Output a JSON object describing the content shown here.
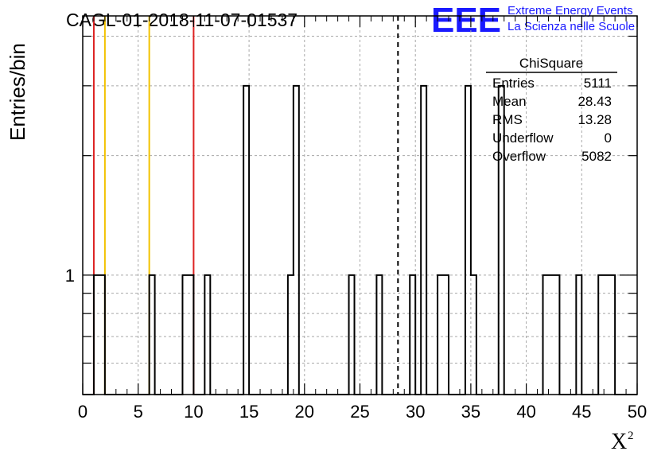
{
  "header": {
    "run_title": "CAGL-01-2018-11-07-01537",
    "logo_text": "EEE",
    "project_line1": "Extreme Energy Events",
    "project_line2": "La Scienza nelle Scuole",
    "brand_color": "#1a1aff"
  },
  "stats": {
    "title": "ChiSquare",
    "rows": [
      {
        "label": "Entries",
        "value": "5111"
      },
      {
        "label": "Mean",
        "value": "28.43"
      },
      {
        "label": "RMS",
        "value": "13.28"
      },
      {
        "label": "Underflow",
        "value": "0"
      },
      {
        "label": "Overflow",
        "value": "5082"
      }
    ]
  },
  "chart_data": {
    "type": "bar",
    "style": "step-histogram",
    "title": "CAGL-01-2018-11-07-01537",
    "xlabel": "X",
    "xlabel_sup": "2",
    "ylabel": "Entries/bin",
    "xlim": [
      0,
      50
    ],
    "ylim": [
      0.5,
      4.5
    ],
    "log_y": true,
    "grid": true,
    "x_ticks": [
      "0",
      "5",
      "10",
      "15",
      "20",
      "25",
      "30",
      "35",
      "40",
      "45",
      "50"
    ],
    "y_tick_label": {
      "value": 1,
      "text": "1"
    },
    "bin_width": 0.5,
    "bins": [
      {
        "x": 1.0,
        "y": 1
      },
      {
        "x": 1.5,
        "y": 1
      },
      {
        "x": 6.0,
        "y": 1
      },
      {
        "x": 9.0,
        "y": 1
      },
      {
        "x": 9.5,
        "y": 1
      },
      {
        "x": 11.0,
        "y": 1
      },
      {
        "x": 14.5,
        "y": 3
      },
      {
        "x": 18.5,
        "y": 1
      },
      {
        "x": 19.0,
        "y": 3
      },
      {
        "x": 24.0,
        "y": 1
      },
      {
        "x": 26.5,
        "y": 1
      },
      {
        "x": 29.5,
        "y": 1
      },
      {
        "x": 30.5,
        "y": 3
      },
      {
        "x": 32.0,
        "y": 1
      },
      {
        "x": 32.5,
        "y": 1
      },
      {
        "x": 34.5,
        "y": 3
      },
      {
        "x": 35.0,
        "y": 1
      },
      {
        "x": 37.5,
        "y": 3
      },
      {
        "x": 41.5,
        "y": 1
      },
      {
        "x": 42.0,
        "y": 1
      },
      {
        "x": 42.5,
        "y": 1
      },
      {
        "x": 44.5,
        "y": 1
      },
      {
        "x": 46.5,
        "y": 1
      },
      {
        "x": 47.0,
        "y": 1
      },
      {
        "x": 47.5,
        "y": 1
      }
    ],
    "reference_lines": [
      {
        "x": 1.0,
        "color": "#dd2222"
      },
      {
        "x": 2.0,
        "color": "#f2c200"
      },
      {
        "x": 6.0,
        "color": "#f2c200"
      },
      {
        "x": 10.0,
        "color": "#dd2222"
      }
    ],
    "mean_line": {
      "x": 28.43,
      "style": "dashed",
      "color": "#000000"
    }
  }
}
